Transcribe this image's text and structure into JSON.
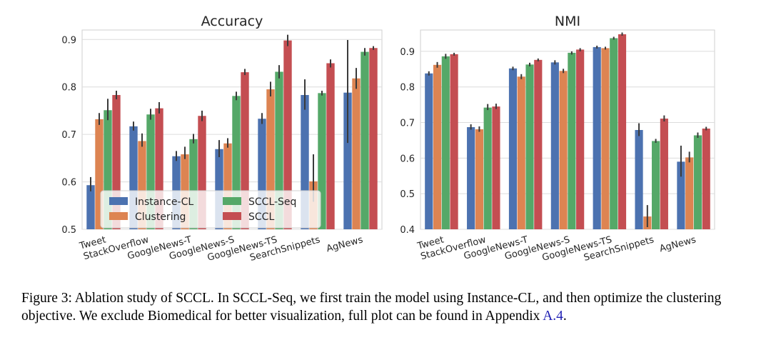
{
  "legend_labels": [
    "Instance-CL",
    "Clustering",
    "SCCL-Seq",
    "SCCL"
  ],
  "colors": {
    "Instance-CL": "#4c72b0",
    "Clustering": "#dd8452",
    "SCCL-Seq": "#55a868",
    "SCCL": "#c44e52",
    "grid": "#dcdcdc",
    "error": "#3a3a3a"
  },
  "chart_data": [
    {
      "type": "bar",
      "title": "Accuracy",
      "categories": [
        "Tweet",
        "StackOverflow",
        "GoogleNews-T",
        "GoogleNews-S",
        "GoogleNews-TS",
        "SearchSnippets",
        "AgNews"
      ],
      "ylim": [
        0.5,
        0.92
      ],
      "yticks": [
        0.5,
        0.6,
        0.7,
        0.8,
        0.9
      ],
      "grid": true,
      "legend_position": "lower-left",
      "series": [
        {
          "name": "Instance-CL",
          "values": [
            0.593,
            0.717,
            0.654,
            0.669,
            0.733,
            0.783,
            0.788
          ],
          "err": [
            [
              0.58,
              0.61
            ],
            [
              0.708,
              0.727
            ],
            [
              0.644,
              0.665
            ],
            [
              0.652,
              0.688
            ],
            [
              0.722,
              0.745
            ],
            [
              0.752,
              0.816
            ],
            [
              0.682,
              0.899
            ]
          ]
        },
        {
          "name": "Clustering",
          "values": [
            0.732,
            0.686,
            0.658,
            0.681,
            0.795,
            0.601,
            0.818
          ],
          "err": [
            [
              0.72,
              0.745
            ],
            [
              0.674,
              0.702
            ],
            [
              0.648,
              0.674
            ],
            [
              0.672,
              0.692
            ],
            [
              0.78,
              0.811
            ],
            [
              0.558,
              0.658
            ],
            [
              0.796,
              0.84
            ]
          ]
        },
        {
          "name": "SCCL-Seq",
          "values": [
            0.751,
            0.742,
            0.69,
            0.781,
            0.832,
            0.787,
            0.874
          ],
          "err": [
            [
              0.73,
              0.775
            ],
            [
              0.731,
              0.754
            ],
            [
              0.681,
              0.701
            ],
            [
              0.772,
              0.79
            ],
            [
              0.818,
              0.846
            ],
            [
              0.782,
              0.792
            ],
            [
              0.866,
              0.882
            ]
          ]
        },
        {
          "name": "SCCL",
          "values": [
            0.783,
            0.755,
            0.739,
            0.831,
            0.898,
            0.85,
            0.882
          ],
          "err": [
            [
              0.774,
              0.792
            ],
            [
              0.744,
              0.768
            ],
            [
              0.728,
              0.75
            ],
            [
              0.825,
              0.838
            ],
            [
              0.886,
              0.91
            ],
            [
              0.841,
              0.858
            ],
            [
              0.878,
              0.886
            ]
          ]
        }
      ]
    },
    {
      "type": "bar",
      "title": "NMI",
      "categories": [
        "Tweet",
        "StackOverflow",
        "GoogleNews-T",
        "GoogleNews-S",
        "GoogleNews-TS",
        "SearchSnippets",
        "AgNews"
      ],
      "ylim": [
        0.4,
        0.96
      ],
      "yticks": [
        0.4,
        0.5,
        0.6,
        0.7,
        0.8,
        0.9
      ],
      "grid": true,
      "series": [
        {
          "name": "Instance-CL",
          "values": [
            0.838,
            0.687,
            0.852,
            0.869,
            0.912,
            0.679,
            0.59
          ],
          "err": [
            [
              0.832,
              0.844
            ],
            [
              0.68,
              0.695
            ],
            [
              0.847,
              0.857
            ],
            [
              0.863,
              0.875
            ],
            [
              0.908,
              0.916
            ],
            [
              0.662,
              0.698
            ],
            [
              0.548,
              0.635
            ]
          ]
        },
        {
          "name": "Clustering",
          "values": [
            0.862,
            0.681,
            0.829,
            0.845,
            0.909,
            0.436,
            0.602
          ],
          "err": [
            [
              0.854,
              0.87
            ],
            [
              0.674,
              0.689
            ],
            [
              0.822,
              0.836
            ],
            [
              0.839,
              0.851
            ],
            [
              0.905,
              0.913
            ],
            [
              0.406,
              0.468
            ],
            [
              0.588,
              0.618
            ]
          ]
        },
        {
          "name": "SCCL-Seq",
          "values": [
            0.886,
            0.742,
            0.863,
            0.896,
            0.937,
            0.648,
            0.664
          ],
          "err": [
            [
              0.879,
              0.893
            ],
            [
              0.735,
              0.752
            ],
            [
              0.858,
              0.868
            ],
            [
              0.891,
              0.9
            ],
            [
              0.933,
              0.941
            ],
            [
              0.643,
              0.654
            ],
            [
              0.657,
              0.672
            ]
          ]
        },
        {
          "name": "SCCL",
          "values": [
            0.892,
            0.745,
            0.876,
            0.905,
            0.948,
            0.711,
            0.683
          ],
          "err": [
            [
              0.888,
              0.896
            ],
            [
              0.738,
              0.753
            ],
            [
              0.872,
              0.88
            ],
            [
              0.9,
              0.909
            ],
            [
              0.944,
              0.953
            ],
            [
              0.703,
              0.72
            ],
            [
              0.678,
              0.688
            ]
          ]
        }
      ]
    }
  ],
  "caption": {
    "text": "Figure 3: Ablation study of SCCL. In SCCL-Seq, we first train the model using Instance-CL, and then optimize the clustering objective. We exclude Biomedical for better visualization, full plot can be found in Appendix ",
    "link": "A.4",
    "end": "."
  }
}
